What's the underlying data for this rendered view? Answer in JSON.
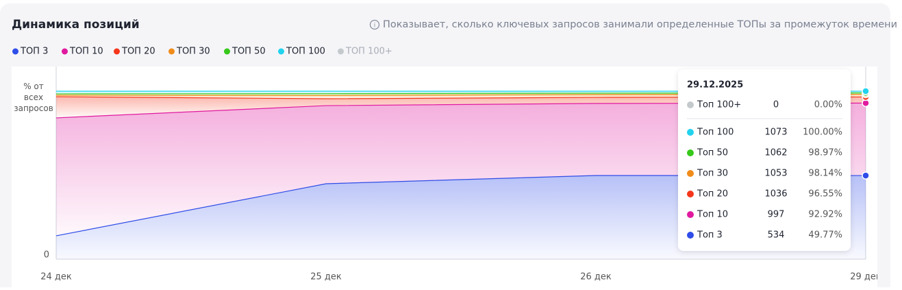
{
  "header": {
    "title": "Динамика позиций",
    "info": "Показывает, сколько ключевых запросов занимали определенные ТОПы за промежуток времени"
  },
  "chart_data": {
    "type": "area",
    "y_label": "% от всех запросов",
    "categories": [
      "24 дек",
      "25 дек",
      "26 дек",
      "29 дек"
    ],
    "ylim": [
      0,
      100
    ],
    "yticks": [
      0
    ],
    "series": [
      {
        "name": "ТОП 3",
        "color": "#2f4de8",
        "values": [
          13.9,
          44.9,
          49.8,
          49.77
        ]
      },
      {
        "name": "ТОП 10",
        "color": "#e01a9f",
        "values": [
          84.1,
          91.4,
          92.7,
          92.92
        ]
      },
      {
        "name": "ТОП 20",
        "color": "#f5361a",
        "values": [
          96.7,
          95.5,
          96.3,
          96.55
        ]
      },
      {
        "name": "ТОП 30",
        "color": "#f08c1a",
        "values": [
          97.6,
          97.4,
          98.0,
          98.14
        ]
      },
      {
        "name": "ТОП 50",
        "color": "#36c81a",
        "values": [
          98.4,
          98.5,
          98.8,
          98.97
        ]
      },
      {
        "name": "ТОП 100",
        "color": "#22d3ee",
        "values": [
          100,
          100,
          100,
          100
        ]
      },
      {
        "name": "ТОП 100+",
        "color": "#c4c9cc",
        "hidden": true
      }
    ],
    "tooltip": {
      "title": "29.12.2025",
      "rows": [
        {
          "name": "Топ 100+",
          "color": "#c4c9cc",
          "count": 0,
          "percent": "0.00%"
        },
        {
          "name": "Топ 100",
          "color": "#22d3ee",
          "count": 1073,
          "percent": "100.00%"
        },
        {
          "name": "Топ 50",
          "color": "#36c81a",
          "count": 1062,
          "percent": "98.97%"
        },
        {
          "name": "Топ 30",
          "color": "#f08c1a",
          "count": 1053,
          "percent": "98.14%"
        },
        {
          "name": "Топ 20",
          "color": "#f5361a",
          "count": 1036,
          "percent": "96.55%"
        },
        {
          "name": "Топ 10",
          "color": "#e01a9f",
          "count": 997,
          "percent": "92.92%"
        },
        {
          "name": "Топ 3",
          "color": "#2f4de8",
          "count": 534,
          "percent": "49.77%"
        }
      ]
    }
  }
}
